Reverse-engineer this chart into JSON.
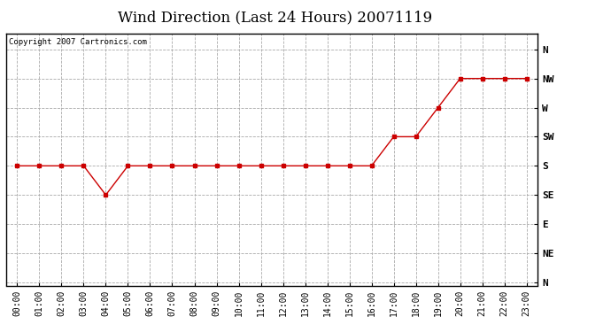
{
  "title": "Wind Direction (Last 24 Hours) 20071119",
  "copyright": "Copyright 2007 Cartronics.com",
  "x_labels": [
    "00:00",
    "01:00",
    "02:00",
    "03:00",
    "04:00",
    "05:00",
    "06:00",
    "07:00",
    "08:00",
    "09:00",
    "10:00",
    "11:00",
    "12:00",
    "13:00",
    "14:00",
    "15:00",
    "16:00",
    "17:00",
    "18:00",
    "19:00",
    "20:00",
    "21:00",
    "22:00",
    "23:00"
  ],
  "y_ticks": [
    360,
    315,
    270,
    225,
    180,
    135,
    90,
    45,
    0
  ],
  "y_labels": [
    "N",
    "NW",
    "W",
    "SW",
    "S",
    "SE",
    "E",
    "NE",
    "N"
  ],
  "wind_values": [
    180,
    180,
    180,
    180,
    135,
    180,
    180,
    180,
    180,
    180,
    180,
    180,
    180,
    180,
    180,
    180,
    180,
    225,
    225,
    270,
    315,
    315,
    315,
    315
  ],
  "line_color": "#cc0000",
  "marker": "s",
  "marker_size": 3,
  "bg_color": "#ffffff",
  "plot_bg_color": "#ffffff",
  "grid_color": "#aaaaaa",
  "title_fontsize": 12,
  "copyright_fontsize": 6.5,
  "tick_fontsize": 8,
  "ylim": [
    -5,
    385
  ],
  "xlim": [
    -0.5,
    23.5
  ]
}
